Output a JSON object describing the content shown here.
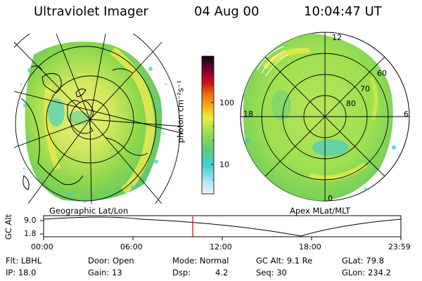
{
  "header": {
    "title": "Ultraviolet Imager",
    "date": "04 Aug 00",
    "time": "10:04:47 UT"
  },
  "left_panel": {
    "label": "Geographic Lat/Lon"
  },
  "right_panel": {
    "label": "Apex MLat/MLT",
    "mlt_labels": [
      "12",
      "18",
      "6",
      "0"
    ],
    "lat_labels": [
      "60",
      "70",
      "80"
    ]
  },
  "colorbar": {
    "unit_label": "photon cm⁻²s⁻¹",
    "ticks": [
      "100",
      "10"
    ]
  },
  "altitude_strip": {
    "axis_label": "GC Alt",
    "y_ticks": [
      "9.0",
      "1.8"
    ],
    "x_ticks": [
      "00:00",
      "06:00",
      "12:00",
      "18:00",
      "23:59"
    ],
    "current_marker_time": "10:04:47"
  },
  "info": {
    "flt": "Flt: LBHL",
    "ip": "IP: 18.0",
    "door": "Door: Open",
    "gain": "Gain: 13",
    "mode": "Mode: Normal",
    "dsp": "Dsp:",
    "dsp_val": "4.2",
    "gcalt": "GC Alt: 9.1 Re",
    "seq": "Seq: 30",
    "glat": "GLat:  79.8",
    "glon": "GLon: 234.2"
  },
  "colors": {
    "aurora_green": "#8ee04a",
    "aurora_yellow": "#e6ea3a",
    "marker_red": "#e00000"
  }
}
